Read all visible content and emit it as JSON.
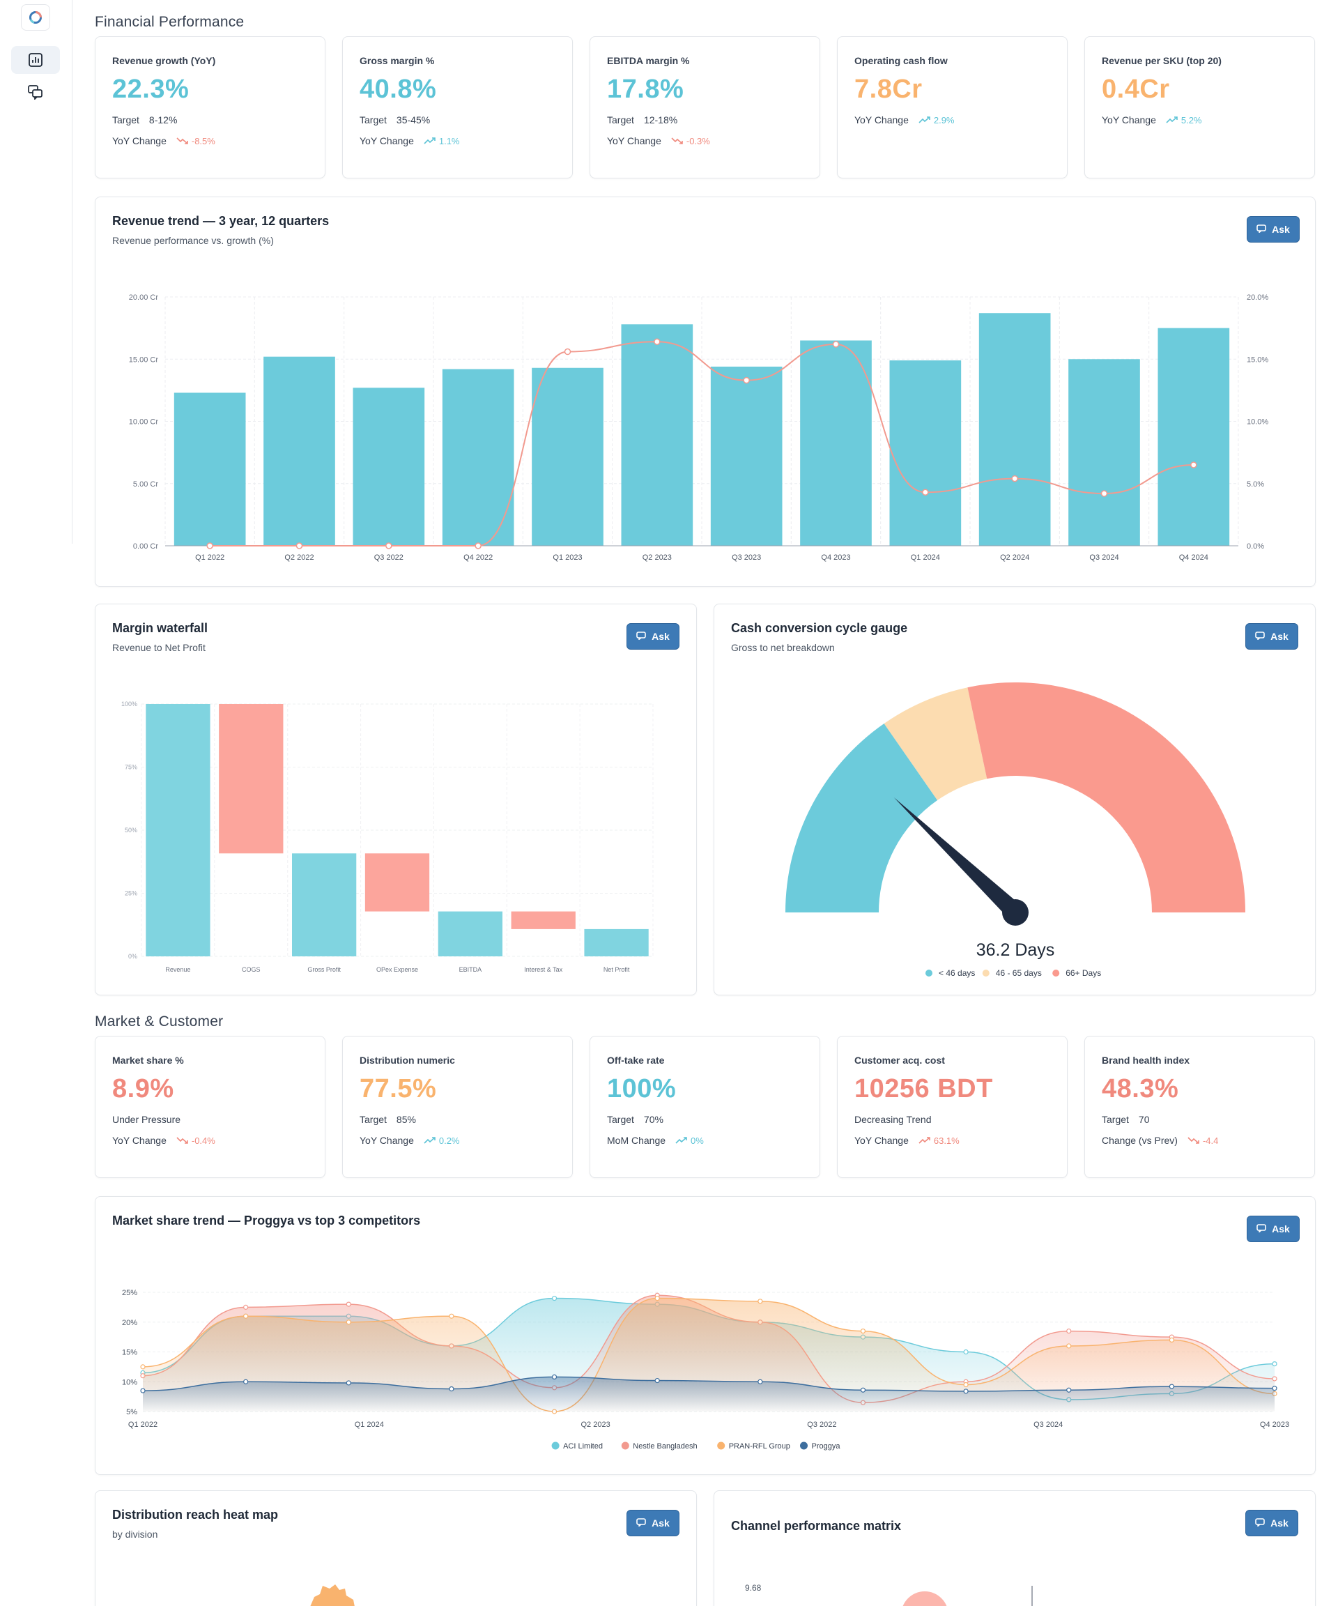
{
  "sections": {
    "financial": "Financial Performance",
    "market": "Market & Customer"
  },
  "ask_label": "Ask",
  "kpis_financial": [
    {
      "title": "Revenue growth (YoY)",
      "value": "22.3%",
      "value_color": "#5cc3d6",
      "target_label": "Target",
      "target": "8-12%",
      "change_label": "YoY Change",
      "change": "-8.5%",
      "trend": "down"
    },
    {
      "title": "Gross margin %",
      "value": "40.8%",
      "value_color": "#5cc3d6",
      "target_label": "Target",
      "target": "35-45%",
      "change_label": "YoY Change",
      "change": "1.1%",
      "trend": "up"
    },
    {
      "title": "EBITDA margin %",
      "value": "17.8%",
      "value_color": "#5cc3d6",
      "target_label": "Target",
      "target": "12-18%",
      "change_label": "YoY Change",
      "change": "-0.3%",
      "trend": "down"
    },
    {
      "title": "Operating cash flow",
      "value": "7.8Cr",
      "value_color": "#f9b36e",
      "change_label": "YoY Change",
      "change": "2.9%",
      "trend": "up"
    },
    {
      "title": "Revenue per SKU (top 20)",
      "value": "0.4Cr",
      "value_color": "#f9b36e",
      "change_label": "YoY Change",
      "change": "5.2%",
      "trend": "up"
    }
  ],
  "kpis_market": [
    {
      "title": "Market share %",
      "value": "8.9%",
      "value_color": "#f0897d",
      "target_label": "Under Pressure",
      "target": "",
      "change_label": "YoY Change",
      "change": "-0.4%",
      "trend": "down"
    },
    {
      "title": "Distribution numeric",
      "value": "77.5%",
      "value_color": "#f9b36e",
      "target_label": "Target",
      "target": "85%",
      "change_label": "YoY Change",
      "change": "0.2%",
      "trend": "up"
    },
    {
      "title": "Off-take rate",
      "value": "100%",
      "value_color": "#5cc3d6",
      "target_label": "Target",
      "target": "70%",
      "change_label": "MoM Change",
      "change": "0%",
      "trend": "up"
    },
    {
      "title": "Customer acq. cost",
      "value": "10256 BDT",
      "value_color": "#f0897d",
      "target_label": "Decreasing Trend",
      "target": "",
      "change_label": "YoY Change",
      "change": "63.1%",
      "trend": "up-bad"
    },
    {
      "title": "Brand health index",
      "value": "48.3%",
      "value_color": "#f0897d",
      "target_label": "Target",
      "target": "70",
      "change_label": "Change (vs Prev)",
      "change": "-4.4",
      "trend": "down"
    }
  ],
  "revenue_trend": {
    "title": "Revenue trend — 3 year, 12 quarters",
    "subtitle": "Revenue performance vs. growth (%)",
    "chart_data": {
      "type": "bar",
      "categories": [
        "Q1 2022",
        "Q2 2022",
        "Q3 2022",
        "Q4 2022",
        "Q1 2023",
        "Q2 2023",
        "Q3 2023",
        "Q4 2023",
        "Q1 2024",
        "Q2 2024",
        "Q3 2024",
        "Q4 2024"
      ],
      "series": [
        {
          "values": [
            12.3,
            15.2,
            12.7,
            14.2,
            14.3,
            17.8,
            14.4,
            16.5,
            14.9,
            18.7,
            15.0,
            17.5
          ],
          "color": "#6ccbdb"
        },
        {
          "values": [
            0,
            0,
            0,
            0,
            15.6,
            16.4,
            13.3,
            16.2,
            4.3,
            5.4,
            4.2,
            6.5
          ],
          "color": "#f29a8f",
          "type": "line"
        }
      ],
      "y_left_ticks": [
        "0.00 Cr",
        "5.00 Cr",
        "10.00 Cr",
        "15.00 Cr",
        "20.00 Cr"
      ],
      "y_right_ticks": [
        "0.0%",
        "5.0%",
        "10.0%",
        "15.0%",
        "20.0%"
      ],
      "ylim": [
        0,
        20
      ]
    }
  },
  "waterfall": {
    "title": "Margin waterfall",
    "subtitle": "Revenue to Net Profit",
    "chart_data": {
      "type": "bar",
      "categories": [
        "Revenue",
        "COGS",
        "Gross Profit",
        "OPex Expense",
        "EBITDA",
        "Interest & Tax",
        "Net Profit"
      ],
      "bars": [
        {
          "start": 0,
          "end": 100,
          "kind": "total"
        },
        {
          "start": 40.8,
          "end": 100,
          "kind": "decrease"
        },
        {
          "start": 0,
          "end": 40.8,
          "kind": "total"
        },
        {
          "start": 17.8,
          "end": 40.8,
          "kind": "decrease"
        },
        {
          "start": 0,
          "end": 17.8,
          "kind": "total"
        },
        {
          "start": 10.8,
          "end": 17.8,
          "kind": "decrease"
        },
        {
          "start": 0,
          "end": 10.8,
          "kind": "total"
        }
      ],
      "y_ticks": [
        "0%",
        "25%",
        "50%",
        "75%",
        "100%"
      ],
      "ylim": [
        0,
        100
      ],
      "colors": {
        "total": "#80d4e0",
        "decrease": "#fca59c"
      }
    }
  },
  "gauge": {
    "title": "Cash conversion cycle gauge",
    "subtitle": "Gross to net breakdown",
    "value_label": "36.2 Days",
    "chart_data": {
      "type": "gauge",
      "value": 36.2,
      "min": 0,
      "max": 150,
      "bands": [
        {
          "label": "< 46 days",
          "from": 0,
          "to": 46,
          "color": "#6ccbdb"
        },
        {
          "label": "46 - 65 days",
          "from": 46,
          "to": 65,
          "color": "#fcdcb0"
        },
        {
          "label": "66+ Days",
          "from": 65,
          "to": 150,
          "color": "#fa9a8e"
        }
      ]
    }
  },
  "market_trend": {
    "title": "Market share trend — Proggya vs top 3 competitors",
    "chart_data": {
      "type": "area",
      "x_ticks": [
        "Q1 2022",
        "Q1 2024",
        "Q2 2023",
        "Q3 2022",
        "Q3 2024",
        "Q4 2023"
      ],
      "y_ticks": [
        "5%",
        "10%",
        "15%",
        "20%",
        "25%"
      ],
      "ylim": [
        5,
        25
      ],
      "series": [
        {
          "name": "ACI Limited",
          "color": "#6ccbdb",
          "values": [
            11.5,
            21,
            21,
            16,
            24,
            23,
            20,
            17.5,
            15,
            7,
            8,
            13
          ]
        },
        {
          "name": "Nestle Bangladesh",
          "color": "#f29a8f",
          "values": [
            11,
            22.5,
            23,
            16,
            9,
            24.5,
            20,
            6.5,
            10,
            18.5,
            17.5,
            10.5
          ]
        },
        {
          "name": "PRAN-RFL Group",
          "color": "#f9b36e",
          "values": [
            12.5,
            21,
            20,
            21,
            5,
            24,
            23.5,
            18.5,
            9.5,
            16,
            17,
            8
          ]
        },
        {
          "name": "Proggya",
          "color": "#3d6e9e",
          "values": [
            8.5,
            10,
            9.8,
            8.8,
            10.8,
            10.2,
            10,
            8.6,
            8.4,
            8.6,
            9.2,
            8.9
          ]
        }
      ]
    }
  },
  "heatmap": {
    "title": "Distribution reach heat map",
    "subtitle": "by division"
  },
  "matrix": {
    "title": "Channel performance matrix",
    "y_top_label": "9.68"
  }
}
